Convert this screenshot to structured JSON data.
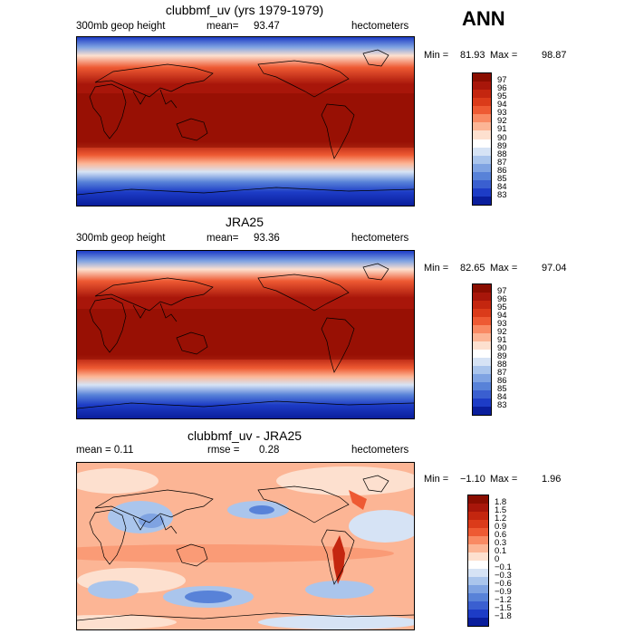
{
  "season": "ANN",
  "panels": [
    {
      "title": "clubbmf_uv (yrs 1979-1979)",
      "left_label": "300mb geop height",
      "mean_label": "mean=",
      "mean_value": "93.47",
      "units": "hectometers",
      "min_label": "Min =",
      "min_value": "81.93",
      "max_label": "Max =",
      "max_value": "98.87",
      "levels": [
        "97",
        "96",
        "95",
        "94",
        "93",
        "92",
        "91",
        "90",
        "89",
        "88",
        "87",
        "86",
        "85",
        "84",
        "83"
      ],
      "colors": [
        "#8a0d00",
        "#a8160a",
        "#c4260f",
        "#db3b1a",
        "#ee5a33",
        "#f98a63",
        "#fcb595",
        "#fde0cf",
        "#ffffff",
        "#d6e3f5",
        "#aac5ec",
        "#7fa3e2",
        "#5882d8",
        "#3a5fd0",
        "#1d3cc6",
        "#0a1e9c"
      ]
    },
    {
      "title": "JRA25",
      "left_label": "300mb geop height",
      "mean_label": "mean=",
      "mean_value": "93.36",
      "units": "hectometers",
      "min_label": "Min =",
      "min_value": "82.65",
      "max_label": "Max =",
      "max_value": "97.04",
      "levels": [
        "97",
        "96",
        "95",
        "94",
        "93",
        "92",
        "91",
        "90",
        "89",
        "88",
        "87",
        "86",
        "85",
        "84",
        "83"
      ],
      "colors": [
        "#8a0d00",
        "#a8160a",
        "#c4260f",
        "#db3b1a",
        "#ee5a33",
        "#f98a63",
        "#fcb595",
        "#fde0cf",
        "#ffffff",
        "#d6e3f5",
        "#aac5ec",
        "#7fa3e2",
        "#5882d8",
        "#3a5fd0",
        "#1d3cc6",
        "#0a1e9c"
      ]
    },
    {
      "title": "clubbmf_uv - JRA25",
      "left_label": "mean =   0.11",
      "mean_label": "rmse =",
      "mean_value": "0.28",
      "units": "hectometers",
      "min_label": "Min =",
      "min_value": "−1.10",
      "max_label": "Max =",
      "max_value": "1.96",
      "levels": [
        "1.8",
        "1.5",
        "1.2",
        "0.9",
        "0.6",
        "0.3",
        "0.1",
        "0",
        "−0.1",
        "−0.3",
        "−0.6",
        "−0.9",
        "−1.2",
        "−1.5",
        "−1.8"
      ],
      "colors": [
        "#8a0d00",
        "#a8160a",
        "#c4260f",
        "#db3b1a",
        "#ee5a33",
        "#f98a63",
        "#fcb595",
        "#fde0cf",
        "#ffffff",
        "#d6e3f5",
        "#aac5ec",
        "#7fa3e2",
        "#5882d8",
        "#3a5fd0",
        "#1d3cc6",
        "#0a1e9c"
      ]
    }
  ]
}
